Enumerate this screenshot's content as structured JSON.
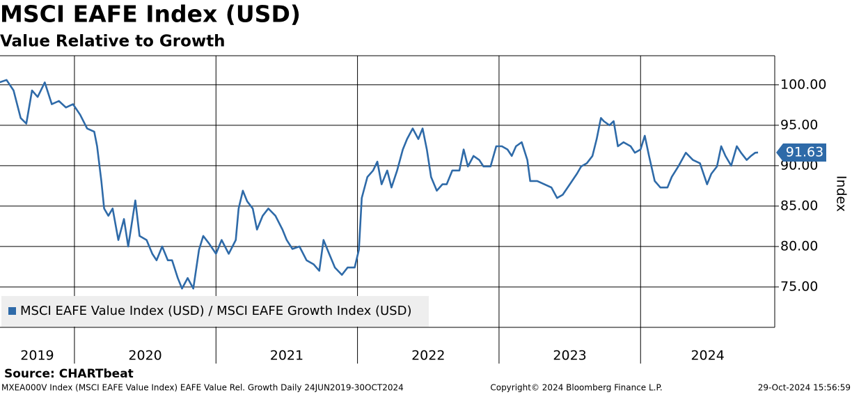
{
  "chart_data": {
    "type": "line",
    "title": "MSCI EAFE Index (USD)",
    "subtitle": "Value Relative to Growth",
    "y_label": "Index",
    "source": "Source: CHARTbeat",
    "footer_left": "MXEA000V Index (MSCI EAFE Value Index) EAFE Value Rel. Growth  Daily 24JUN2019-30OCT2024",
    "footer_center": "Copyright© 2024 Bloomberg Finance L.P.",
    "footer_right": "29-Oct-2024 15:56:59",
    "legend": "lower left",
    "grid": true,
    "xlim": [
      2019.474,
      2024.948
    ],
    "xticks": [
      {
        "value": 2019,
        "label": "2019"
      },
      {
        "value": 2020,
        "label": "2020"
      },
      {
        "value": 2021,
        "label": "2021"
      },
      {
        "value": 2022,
        "label": "2022"
      },
      {
        "value": 2023,
        "label": "2023"
      },
      {
        "value": 2024,
        "label": "2024"
      }
    ],
    "ylim": [
      70,
      103.6
    ],
    "yticks": [
      {
        "value": 75,
        "label": "75.00"
      },
      {
        "value": 80,
        "label": "80.00"
      },
      {
        "value": 85,
        "label": "85.00"
      },
      {
        "value": 90,
        "label": "90.00"
      },
      {
        "value": 95,
        "label": "95.00"
      },
      {
        "value": 100,
        "label": "100.00"
      }
    ],
    "x": [
      2019.47,
      2019.52,
      2019.57,
      2019.62,
      2019.66,
      2019.7,
      2019.74,
      2019.79,
      2019.84,
      2019.89,
      2019.94,
      2019.99,
      2020.04,
      2020.09,
      2020.14,
      2020.16,
      2020.19,
      2020.21,
      2020.24,
      2020.27,
      2020.31,
      2020.35,
      2020.38,
      2020.43,
      2020.46,
      2020.51,
      2020.55,
      2020.58,
      2020.62,
      2020.66,
      2020.69,
      2020.73,
      2020.76,
      2020.8,
      2020.84,
      2020.88,
      2020.91,
      2020.95,
      2021.0,
      2021.04,
      2021.09,
      2021.14,
      2021.16,
      2021.19,
      2021.22,
      2021.26,
      2021.29,
      2021.33,
      2021.37,
      2021.42,
      2021.47,
      2021.5,
      2021.54,
      2021.59,
      2021.64,
      2021.69,
      2021.73,
      2021.76,
      2021.8,
      2021.84,
      2021.89,
      2021.93,
      2021.98,
      2022.01,
      2022.03,
      2022.07,
      2022.11,
      2022.14,
      2022.17,
      2022.21,
      2022.24,
      2022.28,
      2022.32,
      2022.35,
      2022.39,
      2022.43,
      2022.46,
      2022.49,
      2022.52,
      2022.56,
      2022.6,
      2022.63,
      2022.67,
      2022.72,
      2022.75,
      2022.78,
      2022.82,
      2022.86,
      2022.89,
      2022.94,
      2022.98,
      2023.02,
      2023.06,
      2023.09,
      2023.12,
      2023.16,
      2023.2,
      2023.22,
      2023.27,
      2023.32,
      2023.37,
      2023.41,
      2023.45,
      2023.5,
      2023.55,
      2023.58,
      2023.62,
      2023.66,
      2023.69,
      2023.72,
      2023.74,
      2023.78,
      2023.81,
      2023.84,
      2023.88,
      2023.93,
      2023.96,
      2024.0,
      2024.03,
      2024.06,
      2024.1,
      2024.14,
      2024.19,
      2024.22,
      2024.27,
      2024.32,
      2024.37,
      2024.42,
      2024.47,
      2024.5,
      2024.54,
      2024.57,
      2024.6,
      2024.64,
      2024.68,
      2024.71,
      2024.75,
      2024.78,
      2024.81,
      2024.83
    ],
    "series": [
      {
        "name": "MSCI EAFE Value Index (USD) / MSCI EAFE Growth Index (USD)",
        "color": "#2e6aa8",
        "values": [
          100.3,
          100.6,
          99.3,
          95.9,
          95.2,
          99.3,
          98.5,
          100.3,
          97.6,
          98.0,
          97.2,
          97.6,
          96.3,
          94.6,
          94.2,
          92.4,
          88.1,
          84.7,
          83.8,
          84.7,
          80.8,
          83.4,
          80.0,
          85.7,
          81.3,
          80.8,
          79.1,
          78.3,
          80.0,
          78.3,
          78.3,
          76.1,
          74.8,
          76.1,
          74.8,
          79.6,
          81.3,
          80.4,
          79.1,
          80.8,
          79.1,
          80.8,
          84.7,
          86.9,
          85.6,
          84.7,
          82.1,
          83.8,
          84.7,
          83.8,
          82.1,
          80.8,
          79.7,
          80.0,
          78.3,
          77.8,
          77.0,
          80.8,
          79.1,
          77.4,
          76.5,
          77.4,
          77.4,
          79.6,
          86.0,
          88.6,
          89.4,
          90.5,
          87.7,
          89.4,
          87.3,
          89.4,
          92.0,
          93.3,
          94.6,
          93.3,
          94.6,
          92.0,
          88.6,
          86.9,
          87.7,
          87.7,
          89.4,
          89.4,
          92.0,
          89.9,
          91.2,
          90.7,
          89.9,
          89.9,
          92.4,
          92.4,
          92.0,
          91.2,
          92.4,
          92.9,
          90.7,
          88.1,
          88.1,
          87.7,
          87.3,
          86.0,
          86.4,
          87.7,
          89.0,
          89.9,
          90.3,
          91.2,
          93.3,
          95.9,
          95.5,
          95.0,
          95.5,
          92.4,
          92.9,
          92.4,
          91.6,
          92.0,
          93.7,
          91.2,
          88.1,
          87.3,
          87.3,
          88.6,
          90.0,
          91.6,
          90.7,
          90.3,
          87.7,
          89.0,
          89.9,
          92.4,
          91.2,
          90.0,
          92.4,
          91.6,
          90.7,
          91.2,
          91.6,
          91.63
        ]
      }
    ]
  }
}
